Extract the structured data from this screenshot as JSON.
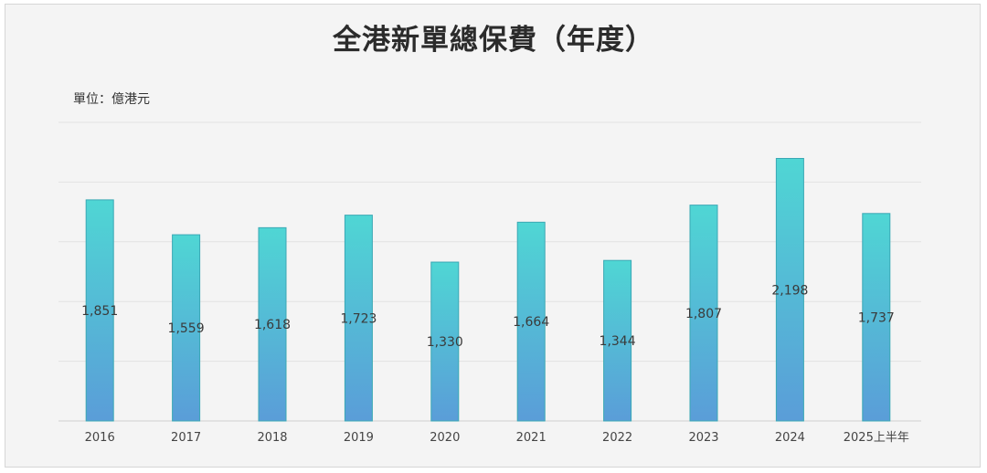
{
  "chart_data": {
    "type": "bar",
    "title": "全港新單總保費（年度）",
    "unit_label": "單位：億港元",
    "categories": [
      "2016",
      "2017",
      "2018",
      "2019",
      "2020",
      "2021",
      "2022",
      "2023",
      "2024",
      "2025上半年"
    ],
    "values": [
      1851,
      1559,
      1618,
      1723,
      1330,
      1664,
      1344,
      1807,
      2198,
      1737
    ],
    "value_labels": [
      "1,851",
      "1,559",
      "1,618",
      "1,723",
      "1,330",
      "1,664",
      "1,344",
      "1,807",
      "2,198",
      "1,737"
    ],
    "ylim": [
      0,
      2500
    ],
    "grid": true,
    "bar_color_top": "#4fd6d4",
    "bar_color_bottom": "#5a9dd8",
    "bar_stroke": "#3aa8b4"
  }
}
